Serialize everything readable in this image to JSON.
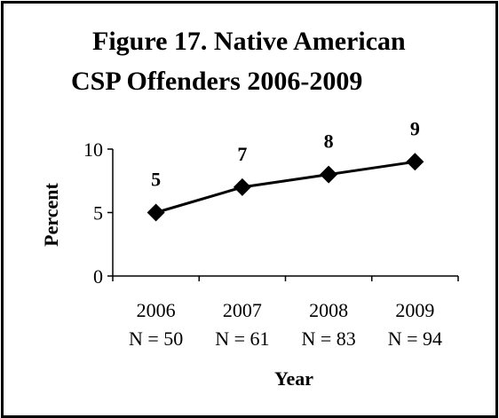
{
  "chart_data": {
    "type": "line",
    "title_lines": [
      "Figure 17.  Native American",
      "CSP Offenders 2006-2009"
    ],
    "xlabel": "Year",
    "ylabel": "Percent",
    "categories": [
      "2006",
      "2007",
      "2008",
      "2009"
    ],
    "category_sublabels": [
      "N = 50",
      "N = 61",
      "N = 83",
      "N = 94"
    ],
    "series": [
      {
        "values": [
          5,
          7,
          8,
          9
        ],
        "data_labels": [
          "5",
          "7",
          "8",
          "9"
        ],
        "color": "#000000",
        "marker": "diamond"
      }
    ],
    "ylim": [
      0,
      10
    ],
    "yticks": [
      "0",
      "5",
      "10"
    ],
    "ytick_values": [
      0,
      5,
      10
    ],
    "grid": false,
    "legend": "none"
  }
}
